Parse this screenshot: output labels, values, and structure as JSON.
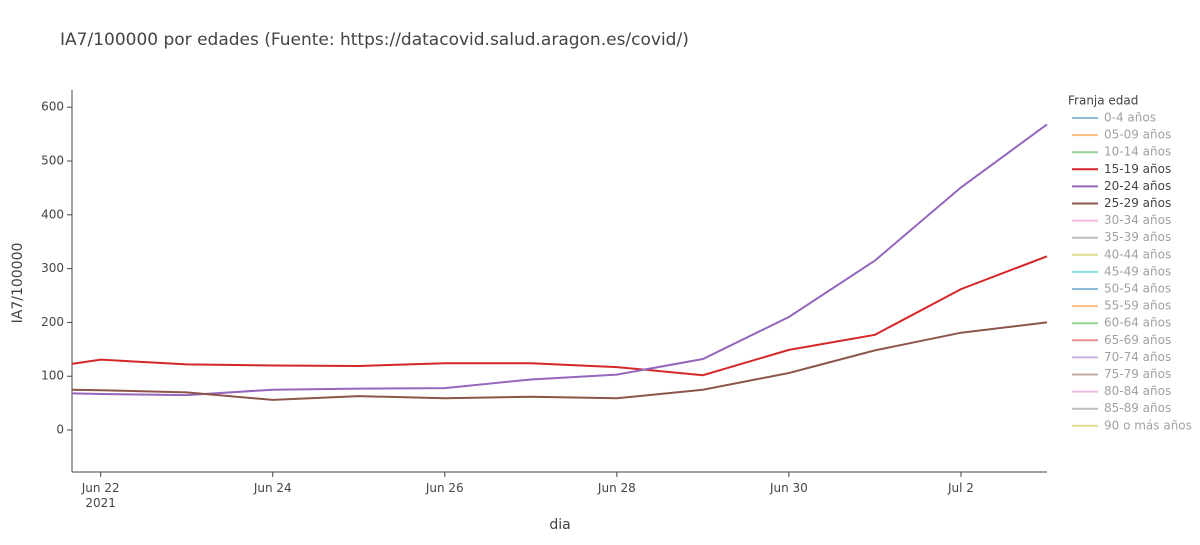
{
  "chart_data": {
    "type": "line",
    "title": "IA7/100000 por edades (Fuente: https://datacovid.salud.aragon.es/covid/)",
    "x_label": "dia",
    "y_label": "IA7/100000",
    "legend_title": "Franja edad",
    "legend_position": "right",
    "x": [
      "2021-06-21 16:00",
      "2021-06-22",
      "2021-06-23",
      "2021-06-24",
      "2021-06-25",
      "2021-06-26",
      "2021-06-27",
      "2021-06-28",
      "2021-06-29",
      "2021-06-30",
      "2021-07-01",
      "2021-07-02",
      "2021-07-03"
    ],
    "xlim": [
      "2021-06-21 16:00",
      "2021-07-03"
    ],
    "xticks": [
      {
        "value": "2021-06-22",
        "label": "Jun 22\n2021"
      },
      {
        "value": "2021-06-24",
        "label": "Jun 24"
      },
      {
        "value": "2021-06-26",
        "label": "Jun 26"
      },
      {
        "value": "2021-06-28",
        "label": "Jun 28"
      },
      {
        "value": "2021-06-30",
        "label": "Jun 30"
      },
      {
        "value": "2021-07-02",
        "label": "Jul 2"
      }
    ],
    "ylim": [
      -78,
      632
    ],
    "yticks": [
      0,
      100,
      200,
      300,
      400,
      500,
      600
    ],
    "grid": false,
    "series": [
      {
        "name": "0-4 años",
        "color": "#1f77b4",
        "visible": "legendonly"
      },
      {
        "name": "05-09 años",
        "color": "#ff7f0e",
        "visible": "legendonly"
      },
      {
        "name": "10-14 años",
        "color": "#2ca02c",
        "visible": "legendonly"
      },
      {
        "name": "15-19 años",
        "color": "#d62728",
        "values": [
          123,
          131,
          122,
          120,
          119,
          124,
          124,
          117,
          102,
          149,
          177,
          262,
          323
        ]
      },
      {
        "name": "20-24 años",
        "color": "#9467bd",
        "values": [
          68,
          67,
          65,
          75,
          77,
          78,
          94,
          103,
          132,
          210,
          315,
          451,
          568
        ]
      },
      {
        "name": "25-29 años",
        "color": "#8c564b",
        "values": [
          75,
          74,
          70,
          56,
          63,
          59,
          62,
          59,
          75,
          106,
          148,
          181,
          200
        ]
      },
      {
        "name": "30-34 años",
        "color": "#e377c2",
        "visible": "legendonly"
      },
      {
        "name": "35-39 años",
        "color": "#7f7f7f",
        "visible": "legendonly"
      },
      {
        "name": "40-44 años",
        "color": "#bcbd22",
        "visible": "legendonly"
      },
      {
        "name": "45-49 años",
        "color": "#17becf",
        "visible": "legendonly"
      },
      {
        "name": "50-54 años",
        "color": "#1f77b4",
        "visible": "legendonly"
      },
      {
        "name": "55-59 años",
        "color": "#ff7f0e",
        "visible": "legendonly"
      },
      {
        "name": "60-64 años",
        "color": "#2ca02c",
        "visible": "legendonly"
      },
      {
        "name": "65-69 años",
        "color": "#d62728",
        "visible": "legendonly"
      },
      {
        "name": "70-74 años",
        "color": "#9467bd",
        "visible": "legendonly"
      },
      {
        "name": "75-79 años",
        "color": "#8c564b",
        "visible": "legendonly"
      },
      {
        "name": "80-84 años",
        "color": "#e377c2",
        "visible": "legendonly"
      },
      {
        "name": "85-89 años",
        "color": "#7f7f7f",
        "visible": "legendonly"
      },
      {
        "name": "90 o más años",
        "color": "#bcbd22",
        "visible": "legendonly"
      }
    ]
  }
}
